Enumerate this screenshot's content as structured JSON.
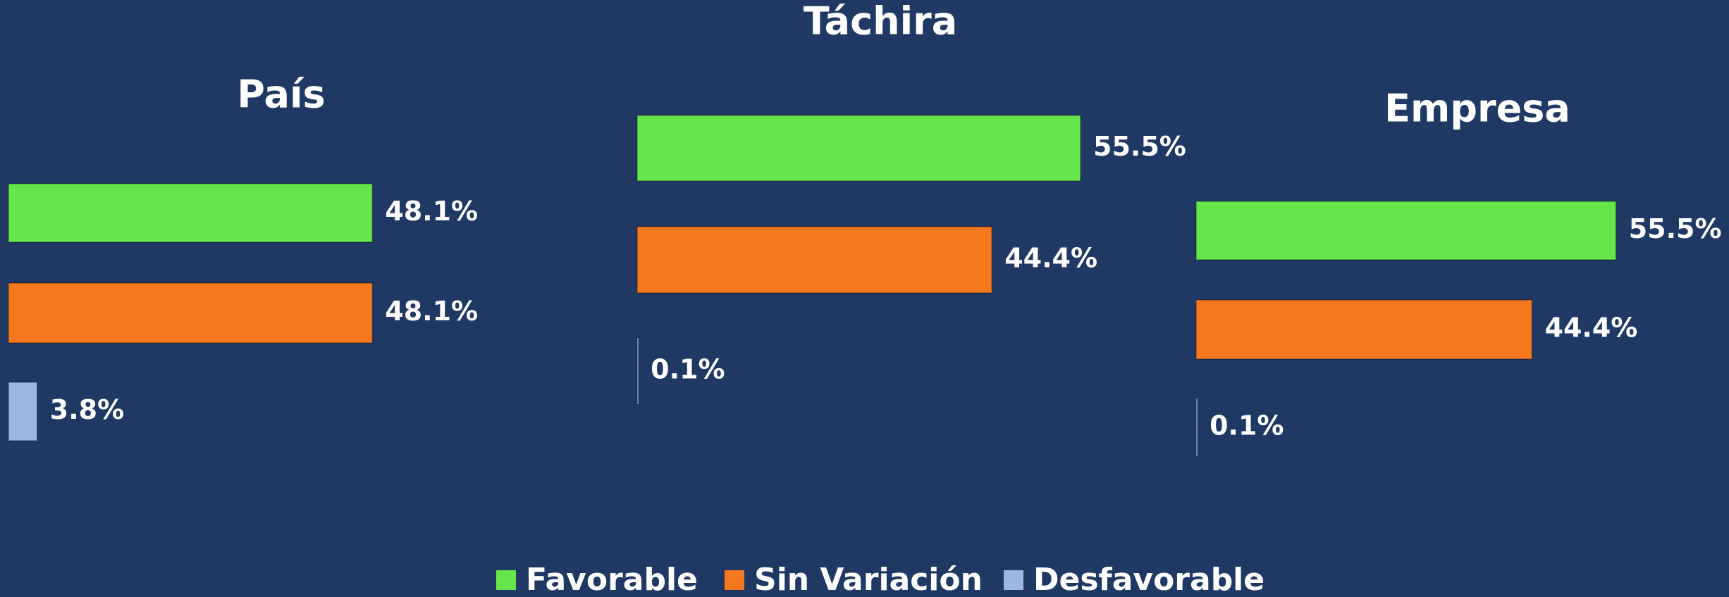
{
  "legend": [
    {
      "name": "Favorable",
      "color": "#66e64a"
    },
    {
      "name": "Sin Variación",
      "color": "#f5781e"
    },
    {
      "name": "Desfavorable",
      "color": "#9db7e3"
    }
  ],
  "chart_data": [
    {
      "type": "bar",
      "title": "País",
      "values": [
        48.1,
        48.1,
        3.8
      ],
      "value_labels": [
        "48.1%",
        "48.1%",
        "3.8%"
      ],
      "xlim": [
        0,
        60
      ]
    },
    {
      "type": "bar",
      "title": "Táchira",
      "values": [
        55.5,
        44.4,
        0.1
      ],
      "value_labels": [
        "55.5%",
        "44.4%",
        "0.1%"
      ],
      "xlim": [
        0,
        60
      ]
    },
    {
      "type": "bar",
      "title": "Empresa",
      "values": [
        55.5,
        44.4,
        0.1
      ],
      "value_labels": [
        "55.5%",
        "44.4%",
        "0.1%"
      ],
      "xlim": [
        0,
        60
      ]
    }
  ]
}
